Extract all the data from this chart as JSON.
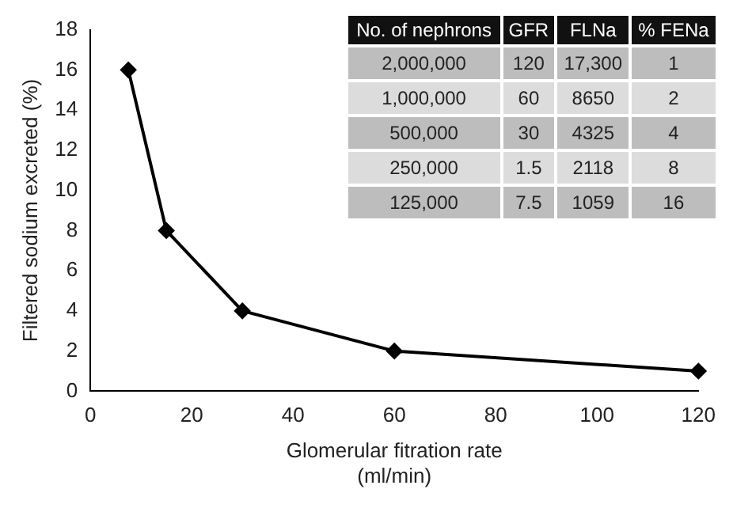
{
  "chart_data": {
    "type": "line",
    "xlabel": "Glomerular fitration rate\n(ml/min)",
    "ylabel": "Filtered sodium excreted (%)",
    "x": [
      7.5,
      15,
      30,
      60,
      120
    ],
    "series": [
      {
        "color": "#000000",
        "values": [
          16,
          8,
          4,
          2,
          1
        ]
      }
    ],
    "xlim": [
      0,
      120
    ],
    "xticks": [
      0,
      20,
      40,
      60,
      80,
      100,
      120
    ],
    "ylim": [
      0,
      18
    ],
    "yticks": [
      0,
      2,
      4,
      6,
      8,
      10,
      12,
      14,
      16,
      18
    ],
    "grid": false,
    "legend": false,
    "marker": "diamond",
    "line_style": "solid",
    "annotations": [
      "No. of nephrons",
      "GFR",
      "FLNa",
      "% FENa",
      "2,000,000",
      "120",
      "17,300",
      "1",
      "1,000,000",
      "60",
      "8650",
      "2",
      "500,000",
      "30",
      "4325",
      "4",
      "250,000",
      "1.5",
      "2118",
      "8",
      "125,000",
      "7.5",
      "1059",
      "16"
    ]
  }
}
